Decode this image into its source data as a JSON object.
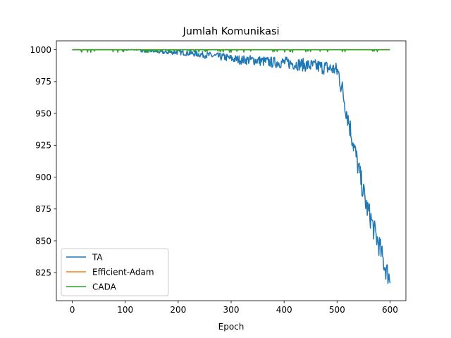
{
  "chart_data": {
    "type": "line",
    "title": "Jumlah Komunikasi",
    "xlabel": "Epoch",
    "ylabel": "",
    "xlim": [
      -30,
      630
    ],
    "ylim": [
      803,
      1007
    ],
    "xticks": [
      0,
      100,
      200,
      300,
      400,
      500,
      600
    ],
    "yticks": [
      825,
      850,
      875,
      900,
      925,
      950,
      975,
      1000
    ],
    "grid": false,
    "legend_position": "lower left",
    "series": [
      {
        "name": "TA",
        "color": "#1f77b4",
        "x": [
          0,
          50,
          100,
          130,
          150,
          170,
          200,
          230,
          250,
          270,
          290,
          300,
          320,
          340,
          360,
          380,
          400,
          420,
          440,
          460,
          480,
          490,
          500,
          505,
          510,
          515,
          520,
          525,
          530,
          535,
          540,
          545,
          550,
          555,
          560,
          565,
          570,
          575,
          580,
          585,
          590,
          595,
          600
        ],
        "y": [
          1000,
          1000,
          1000,
          999,
          999,
          998,
          998,
          997,
          996,
          995,
          994,
          993,
          992,
          992,
          991,
          990,
          990,
          989,
          988,
          987,
          986,
          985,
          984,
          978,
          968,
          958,
          948,
          938,
          928,
          918,
          908,
          898,
          888,
          878,
          872,
          866,
          858,
          852,
          846,
          838,
          830,
          825,
          820
        ]
      },
      {
        "name": "Efficient-Adam",
        "color": "#ff7f0e",
        "x": [
          0,
          600
        ],
        "y": [
          1000,
          1000
        ]
      },
      {
        "name": "CADA",
        "color": "#2ca02c",
        "x": [
          0,
          600
        ],
        "y": [
          1000,
          1000
        ]
      }
    ]
  }
}
